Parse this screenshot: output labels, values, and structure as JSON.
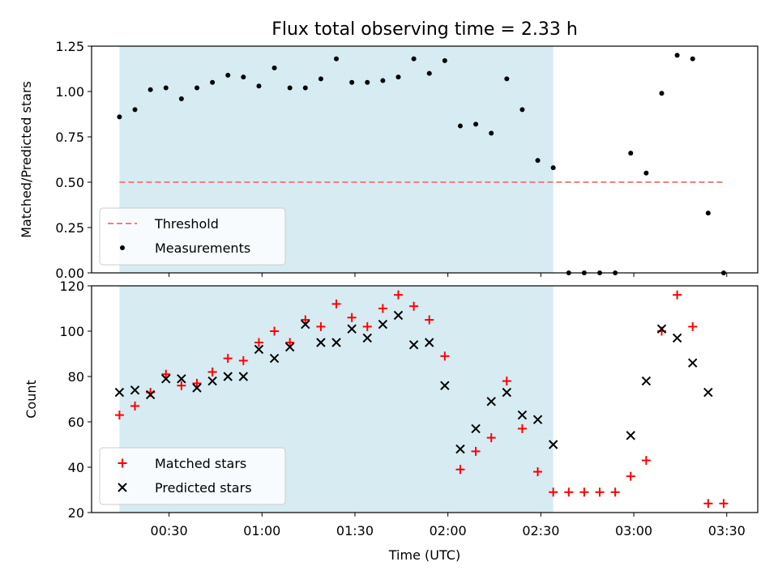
{
  "title": "Flux total observing time = 2.33 h",
  "colors": {
    "shade": "#add8e6",
    "threshold": "#f08080",
    "matched": "#ff0000",
    "predicted": "#000000",
    "measurement": "#000000"
  },
  "chart_data": [
    {
      "type": "scatter",
      "ylabel": "Matched/Predicted stars",
      "xlabel": "",
      "x_ticks": [
        "00:30",
        "01:00",
        "01:30",
        "02:00",
        "02:30",
        "03:00",
        "03:30"
      ],
      "x_tick_values": [
        "00:30",
        "01:00",
        "01:30",
        "02:00",
        "02:30",
        "03:00",
        "03:30"
      ],
      "xlim": [
        "00:05",
        "03:40"
      ],
      "ylim": [
        0,
        1.25
      ],
      "y_ticks": [
        "0.00",
        "0.25",
        "0.50",
        "0.75",
        "1.00",
        "1.25"
      ],
      "shaded_interval": [
        "00:14",
        "02:34"
      ],
      "legend": {
        "placement": "lower left",
        "entries": [
          "Threshold",
          "Measurements"
        ]
      },
      "threshold": {
        "name": "Threshold",
        "value": 0.5,
        "x_start": "00:14",
        "x_end": "03:29"
      },
      "series": [
        {
          "name": "Measurements",
          "x": [
            "00:14",
            "00:19",
            "00:24",
            "00:29",
            "00:34",
            "00:39",
            "00:44",
            "00:49",
            "00:54",
            "00:59",
            "01:04",
            "01:09",
            "01:14",
            "01:19",
            "01:24",
            "01:29",
            "01:34",
            "01:39",
            "01:44",
            "01:49",
            "01:54",
            "01:59",
            "02:04",
            "02:09",
            "02:14",
            "02:19",
            "02:24",
            "02:29",
            "02:34",
            "02:39",
            "02:44",
            "02:49",
            "02:54",
            "02:59",
            "03:04",
            "03:09",
            "03:14",
            "03:19",
            "03:24",
            "03:29"
          ],
          "values": [
            0.86,
            0.9,
            1.01,
            1.02,
            0.96,
            1.02,
            1.05,
            1.09,
            1.08,
            1.03,
            1.13,
            1.02,
            1.02,
            1.07,
            1.18,
            1.05,
            1.05,
            1.06,
            1.08,
            1.18,
            1.1,
            1.17,
            0.81,
            0.82,
            0.77,
            1.07,
            0.9,
            0.62,
            0.58,
            0.0,
            0.0,
            0.0,
            0.0,
            0.66,
            0.55,
            0.99,
            1.2,
            1.18,
            0.33,
            0.0
          ]
        }
      ]
    },
    {
      "type": "scatter",
      "ylabel": "Count",
      "xlabel": "Time (UTC)",
      "x_ticks": [
        "00:30",
        "01:00",
        "01:30",
        "02:00",
        "02:30",
        "03:00",
        "03:30"
      ],
      "x_tick_values": [
        "00:30",
        "01:00",
        "01:30",
        "02:00",
        "02:30",
        "03:00",
        "03:30"
      ],
      "xlim": [
        "00:05",
        "03:40"
      ],
      "ylim": [
        20,
        120
      ],
      "y_ticks": [
        "20",
        "40",
        "60",
        "80",
        "100",
        "120"
      ],
      "shaded_interval": [
        "00:14",
        "02:34"
      ],
      "legend": {
        "placement": "lower left",
        "entries": [
          "Matched stars",
          "Predicted stars"
        ]
      },
      "series": [
        {
          "name": "Matched stars",
          "marker": "plus",
          "x": [
            "00:14",
            "00:19",
            "00:24",
            "00:29",
            "00:34",
            "00:39",
            "00:44",
            "00:49",
            "00:54",
            "00:59",
            "01:04",
            "01:09",
            "01:14",
            "01:19",
            "01:24",
            "01:29",
            "01:34",
            "01:39",
            "01:44",
            "01:49",
            "01:54",
            "01:59",
            "02:04",
            "02:09",
            "02:14",
            "02:19",
            "02:24",
            "02:29",
            "02:34",
            "02:39",
            "02:44",
            "02:49",
            "02:54",
            "02:59",
            "03:04",
            "03:09",
            "03:14",
            "03:19",
            "03:24",
            "03:29"
          ],
          "values": [
            63,
            67,
            73,
            81,
            76,
            77,
            82,
            88,
            87,
            95,
            100,
            95,
            105,
            102,
            112,
            106,
            102,
            110,
            116,
            111,
            105,
            89,
            39,
            47,
            53,
            78,
            57,
            38,
            29,
            29,
            29,
            29,
            29,
            36,
            43,
            100,
            116,
            102,
            24,
            24
          ]
        },
        {
          "name": "Predicted stars",
          "marker": "x",
          "x": [
            "00:14",
            "00:19",
            "00:24",
            "00:29",
            "00:34",
            "00:39",
            "00:44",
            "00:49",
            "00:54",
            "00:59",
            "01:04",
            "01:09",
            "01:14",
            "01:19",
            "01:24",
            "01:29",
            "01:34",
            "01:39",
            "01:44",
            "01:49",
            "01:54",
            "01:59",
            "02:04",
            "02:09",
            "02:14",
            "02:19",
            "02:24",
            "02:29",
            "02:34",
            "02:59",
            "03:04",
            "03:09",
            "03:14",
            "03:19",
            "03:24"
          ],
          "values": [
            73,
            74,
            72,
            79,
            79,
            75,
            78,
            80,
            80,
            92,
            88,
            93,
            103,
            95,
            95,
            101,
            97,
            103,
            107,
            94,
            95,
            76,
            48,
            57,
            69,
            73,
            63,
            61,
            50,
            54,
            78,
            101,
            97,
            86,
            73
          ]
        }
      ]
    }
  ]
}
